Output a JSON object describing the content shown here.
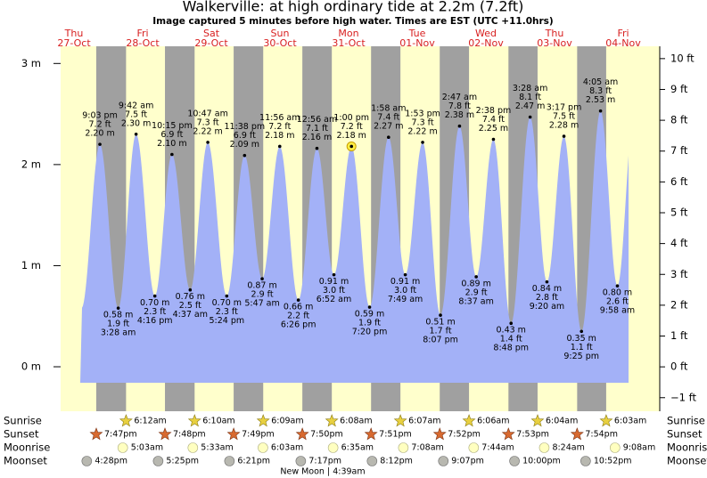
{
  "chart_data": {
    "type": "tide",
    "title": "Walkerville: at high  ordinary tide at 2.2m (7.2ft)",
    "subtitle": "Image captured 5 minutes before high water. Times are EST (UTC +11.0hrs)",
    "footer": "New Moon | 4:39am",
    "ylim": [
      -0.44,
      3.17
    ],
    "yticks": [
      {
        "value": 0,
        "label": "0 m"
      },
      {
        "value": 1,
        "label": "1 m"
      },
      {
        "value": 2,
        "label": "2 m"
      },
      {
        "value": 3,
        "label": "3 m"
      }
    ],
    "y2lim": [
      -1.44,
      10.4
    ],
    "y2ticks": [
      {
        "value": -1,
        "label": "−1 ft"
      },
      {
        "value": 0,
        "label": "0 ft"
      },
      {
        "value": 1,
        "label": "1 ft"
      },
      {
        "value": 2,
        "label": "2 ft"
      },
      {
        "value": 3,
        "label": "3 ft"
      },
      {
        "value": 4,
        "label": "4 ft"
      },
      {
        "value": 5,
        "label": "5 ft"
      },
      {
        "value": 6,
        "label": "6 ft"
      },
      {
        "value": 7,
        "label": "7 ft"
      },
      {
        "value": 8,
        "label": "8 ft"
      },
      {
        "value": 9,
        "label": "9 ft"
      },
      {
        "value": 10,
        "label": "10 ft"
      }
    ],
    "color": "#a3b1f7",
    "days": [
      {
        "weekday": "Thu",
        "date": "27-Oct",
        "tides": [
          {
            "time": "9:03 pm",
            "value": 2.2,
            "value_label": "2.20 m",
            "ft_label": "7.2 ft"
          }
        ]
      },
      {
        "weekday": "Fri",
        "date": "28-Oct",
        "tides": [
          {
            "time": "3:28 am",
            "value": 0.58,
            "value_label": "0.58 m",
            "ft_label": "1.9 ft"
          },
          {
            "time": "9:42 am",
            "value": 2.3,
            "value_label": "2.30 m",
            "ft_label": "7.5 ft"
          },
          {
            "time": "4:16 pm",
            "value": 0.7,
            "value_label": "0.70 m",
            "ft_label": "2.3 ft"
          },
          {
            "time": "10:15 pm",
            "value": 2.1,
            "value_label": "2.10 m",
            "ft_label": "6.9 ft"
          }
        ]
      },
      {
        "weekday": "Sat",
        "date": "29-Oct",
        "tides": [
          {
            "time": "4:37 am",
            "value": 0.76,
            "value_label": "0.76 m",
            "ft_label": "2.5 ft"
          },
          {
            "time": "10:47 am",
            "value": 2.22,
            "value_label": "2.22 m",
            "ft_label": "7.3 ft"
          },
          {
            "time": "5:24 pm",
            "value": 0.7,
            "value_label": "0.70 m",
            "ft_label": "2.3 ft"
          },
          {
            "time": "11:38 pm",
            "value": 2.09,
            "value_label": "2.09 m",
            "ft_label": "6.9 ft"
          }
        ]
      },
      {
        "weekday": "Sun",
        "date": "30-Oct",
        "tides": [
          {
            "time": "5:47 am",
            "value": 0.87,
            "value_label": "0.87 m",
            "ft_label": "2.9 ft"
          },
          {
            "time": "11:56 am",
            "value": 2.18,
            "value_label": "2.18 m",
            "ft_label": "7.2 ft"
          },
          {
            "time": "6:26 pm",
            "value": 0.66,
            "value_label": "0.66 m",
            "ft_label": "2.2 ft"
          }
        ]
      },
      {
        "weekday": "Mon",
        "date": "31-Oct",
        "tides": [
          {
            "time": "12:56 am",
            "value": 2.16,
            "value_label": "2.16 m",
            "ft_label": "7.1 ft"
          },
          {
            "time": "6:52 am",
            "value": 0.91,
            "value_label": "0.91 m",
            "ft_label": "3.0 ft"
          },
          {
            "time": "1:00 pm",
            "value": 2.18,
            "value_label": "2.18 m",
            "ft_label": "7.2 ft",
            "highlighted": true
          },
          {
            "time": "7:20 pm",
            "value": 0.59,
            "value_label": "0.59 m",
            "ft_label": "1.9 ft"
          }
        ]
      },
      {
        "weekday": "Tue",
        "date": "01-Nov",
        "tides": [
          {
            "time": "1:58 am",
            "value": 2.27,
            "value_label": "2.27 m",
            "ft_label": "7.4 ft"
          },
          {
            "time": "7:49 am",
            "value": 0.91,
            "value_label": "0.91 m",
            "ft_label": "3.0 ft"
          },
          {
            "time": "1:53 pm",
            "value": 2.22,
            "value_label": "2.22 m",
            "ft_label": "7.3 ft"
          },
          {
            "time": "8:07 pm",
            "value": 0.51,
            "value_label": "0.51 m",
            "ft_label": "1.7 ft"
          }
        ]
      },
      {
        "weekday": "Wed",
        "date": "02-Nov",
        "tides": [
          {
            "time": "2:47 am",
            "value": 2.38,
            "value_label": "2.38 m",
            "ft_label": "7.8 ft"
          },
          {
            "time": "8:37 am",
            "value": 0.89,
            "value_label": "0.89 m",
            "ft_label": "2.9 ft"
          },
          {
            "time": "2:38 pm",
            "value": 2.25,
            "value_label": "2.25 m",
            "ft_label": "7.4 ft"
          },
          {
            "time": "8:48 pm",
            "value": 0.43,
            "value_label": "0.43 m",
            "ft_label": "1.4 ft"
          }
        ]
      },
      {
        "weekday": "Thu",
        "date": "03-Nov",
        "tides": [
          {
            "time": "3:28 am",
            "value": 2.47,
            "value_label": "2.47 m",
            "ft_label": "8.1 ft"
          },
          {
            "time": "9:20 am",
            "value": 0.84,
            "value_label": "0.84 m",
            "ft_label": "2.8 ft"
          },
          {
            "time": "3:17 pm",
            "value": 2.28,
            "value_label": "2.28 m",
            "ft_label": "7.5 ft"
          },
          {
            "time": "9:25 pm",
            "value": 0.35,
            "value_label": "0.35 m",
            "ft_label": "1.1 ft"
          }
        ]
      },
      {
        "weekday": "Fri",
        "date": "04-Nov",
        "tides": [
          {
            "time": "4:05 am",
            "value": 2.53,
            "value_label": "2.53 m",
            "ft_label": "8.3 ft"
          },
          {
            "time": "9:58 am",
            "value": 0.8,
            "value_label": "0.80 m",
            "ft_label": "2.6 ft"
          }
        ]
      }
    ],
    "almanac": [
      {
        "label": "Sunrise",
        "times": [
          null,
          "6:12am",
          "6:10am",
          "6:09am",
          "6:08am",
          "6:07am",
          "6:06am",
          "6:04am",
          "6:03am"
        ]
      },
      {
        "label": "Sunset",
        "times": [
          "7:47pm",
          "7:48pm",
          "7:49pm",
          "7:50pm",
          "7:51pm",
          "7:52pm",
          "7:53pm",
          "7:54pm",
          null
        ]
      },
      {
        "label": "Moonrise",
        "times": [
          null,
          "5:03am",
          "5:33am",
          "6:03am",
          "6:35am",
          "7:08am",
          "7:44am",
          "8:24am",
          "9:08am"
        ]
      },
      {
        "label": "Moonset",
        "times": [
          "4:28pm",
          "5:25pm",
          "6:21pm",
          "7:17pm",
          "8:12pm",
          "9:07pm",
          "10:00pm",
          "10:52pm",
          null
        ]
      }
    ]
  }
}
